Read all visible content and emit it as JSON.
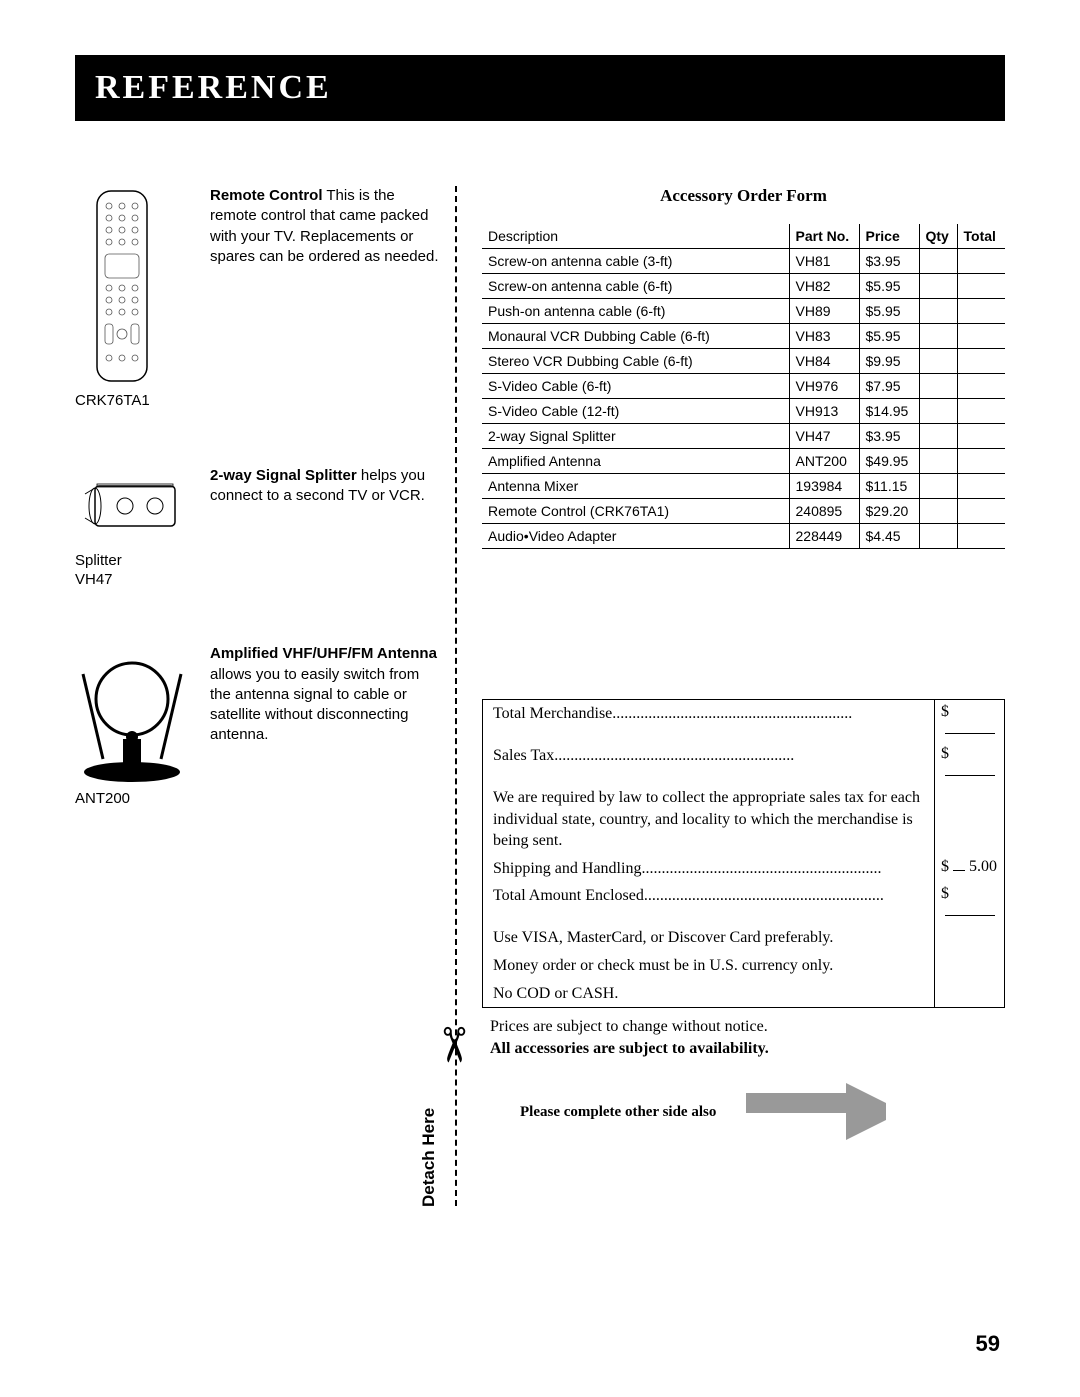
{
  "header": {
    "title": "Reference"
  },
  "accessories": [
    {
      "caption": "CRK76TA1",
      "bold": "Remote Control",
      "text": " This is the remote control that came packed with your TV. Replacements or spares can be ordered as needed."
    },
    {
      "caption": "Splitter\nVH47",
      "bold": "2-way Signal Splitter",
      "text": "  helps you connect to a second TV or VCR."
    },
    {
      "caption": "ANT200",
      "bold": "Amplified VHF/UHF/FM Antenna",
      "text": " allows you to easily switch from the antenna signal to cable or satellite without disconnecting antenna."
    }
  ],
  "orderForm": {
    "title": "Accessory Order Form",
    "columns": [
      "Description",
      "Part No.",
      "Price",
      "Qty",
      "Total"
    ],
    "rows": [
      [
        "Screw-on antenna cable (3-ft)",
        "VH81",
        "$3.95",
        "",
        ""
      ],
      [
        "Screw-on antenna cable (6-ft)",
        "VH82",
        "$5.95",
        "",
        ""
      ],
      [
        "Push-on antenna cable (6-ft)",
        "VH89",
        "$5.95",
        "",
        ""
      ],
      [
        "Monaural VCR Dubbing Cable (6-ft)",
        "VH83",
        "$5.95",
        "",
        ""
      ],
      [
        "Stereo VCR Dubbing Cable (6-ft)",
        "VH84",
        "$9.95",
        "",
        ""
      ],
      [
        "S-Video Cable (6-ft)",
        "VH976",
        "$7.95",
        "",
        ""
      ],
      [
        "S-Video Cable (12-ft)",
        "VH913",
        "$14.95",
        "",
        ""
      ],
      [
        "2-way Signal Splitter",
        "VH47",
        "$3.95",
        "",
        ""
      ],
      [
        "Amplified Antenna",
        "ANT200",
        "$49.95",
        "",
        ""
      ],
      [
        "Antenna Mixer",
        "193984",
        "$11.15",
        "",
        ""
      ],
      [
        "Remote Control (CRK76TA1)",
        "240895",
        "$29.20",
        "",
        ""
      ],
      [
        "Audio•Video Adapter",
        "228449",
        "$4.45",
        "",
        ""
      ]
    ]
  },
  "totals": {
    "lines": [
      {
        "label": "Total Merchandise",
        "dots": true,
        "value": "$"
      },
      {
        "label": "Sales Tax",
        "dots": true,
        "value": "$"
      },
      {
        "label": "We are required by law to collect the appropriate sales tax for each individual state, country, and locality to which the merchandise is being sent.",
        "dots": false,
        "value": ""
      },
      {
        "label": "Shipping and Handling",
        "dots": true,
        "value": "$   5.00"
      },
      {
        "label": "Total Amount Enclosed",
        "dots": true,
        "value": "$"
      },
      {
        "label": "Use VISA, MasterCard, or Discover Card preferably.",
        "dots": false,
        "value": ""
      },
      {
        "label": "Money order or check must be in U.S. currency only.",
        "dots": false,
        "value": ""
      },
      {
        "label": "No COD or CASH.",
        "dots": false,
        "value": ""
      }
    ]
  },
  "notices": {
    "line1": "Prices are subject to change without notice.",
    "line2": "All accessories are subject to availability.",
    "complete": "Please complete other side also"
  },
  "detach": "Detach Here",
  "pageNumber": "59"
}
